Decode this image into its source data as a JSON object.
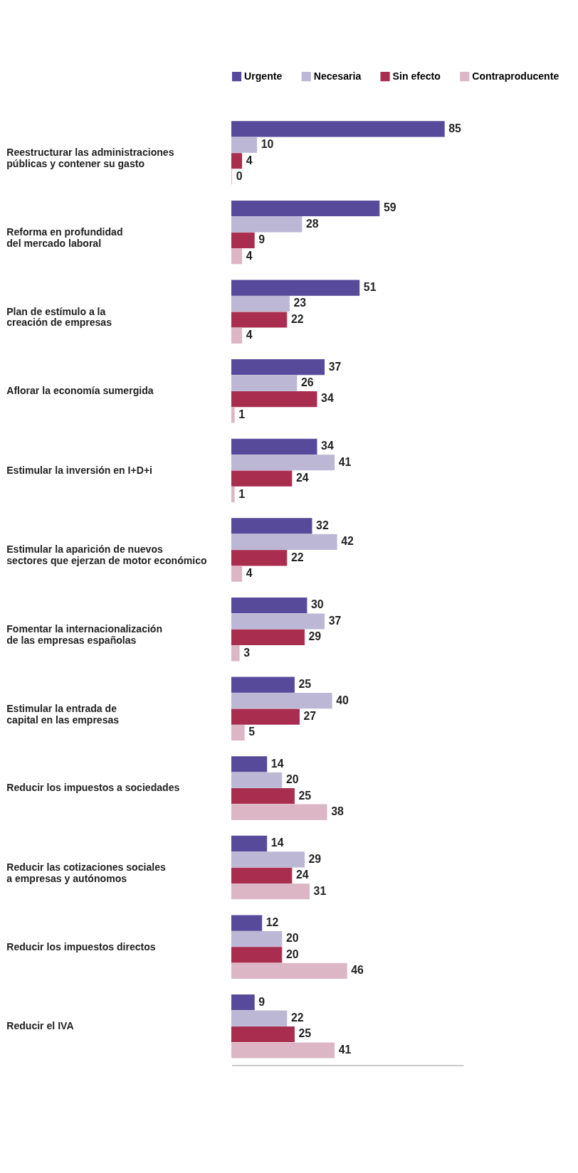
{
  "chart_data": {
    "type": "bar",
    "orientation": "horizontal",
    "data_labels": true,
    "legend": "top",
    "grid": false,
    "categories": [
      "Reestructurar las administraciones\npúblicas y contener su gasto",
      "Reforma en profundidad\ndel mercado laboral",
      "Plan de estímulo a la\ncreación de empresas",
      "Aflorar la economía sumergida",
      "Estimular la inversión en I+D+i",
      "Estimular la aparición de nuevos\nsectores que ejerzan de motor económico",
      "Fomentar la internacionalización\nde las empresas españolas",
      "Estimular la entrada de\ncapital en las empresas",
      "Reducir los impuestos a sociedades",
      "Reducir las cotizaciones sociales\na empresas y autónomos",
      "Reducir los impuestos directos",
      "Reducir el IVA"
    ],
    "series": [
      {
        "name": "Urgente",
        "color": "#574a9b",
        "values": [
          85,
          59,
          51,
          37,
          34,
          32,
          30,
          25,
          14,
          14,
          12,
          9
        ]
      },
      {
        "name": "Necesaria",
        "color": "#bcb7d4",
        "values": [
          10,
          28,
          23,
          26,
          41,
          42,
          37,
          40,
          20,
          29,
          20,
          22
        ]
      },
      {
        "name": "Sin efecto",
        "color": "#a82d4f",
        "values": [
          4,
          9,
          22,
          34,
          24,
          22,
          29,
          27,
          25,
          24,
          20,
          25
        ]
      },
      {
        "name": "Contraproducente",
        "color": "#dcb6c5",
        "values": [
          0,
          4,
          4,
          1,
          1,
          4,
          3,
          5,
          38,
          31,
          46,
          41
        ]
      }
    ]
  }
}
